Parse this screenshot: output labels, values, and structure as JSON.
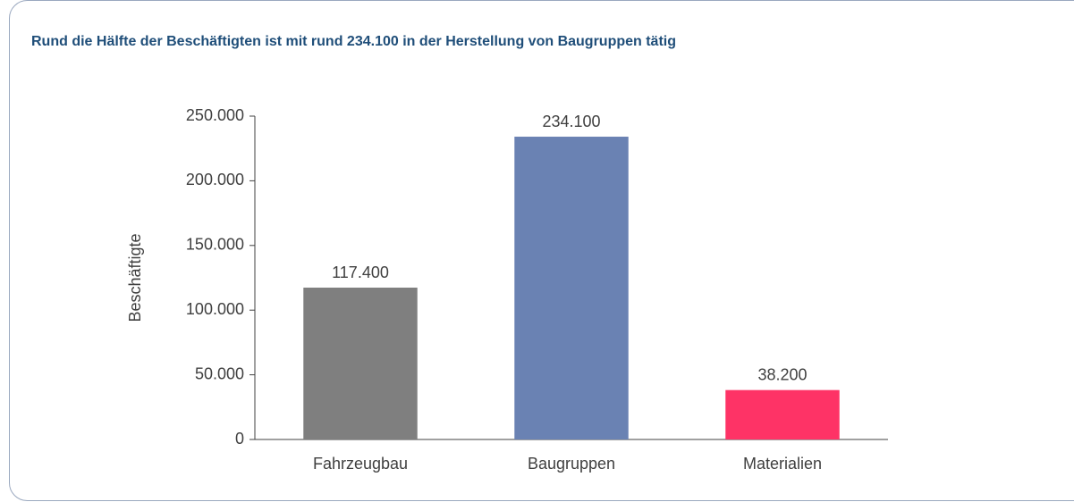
{
  "chart_data": {
    "type": "bar",
    "title": "Rund die Hälfte der Beschäftigten ist mit rund 234.100 in der Herstellung von Baugruppen tätig",
    "y_label": "Beschäftigte",
    "categories": [
      "Fahrzeugbau",
      "Baugruppen",
      "Materialien"
    ],
    "values": [
      117400,
      234100,
      38200
    ],
    "value_labels": [
      "117.400",
      "234.100",
      "38.200"
    ],
    "colors": [
      "#7f7f7f",
      "#6a82b3",
      "#fe3366"
    ],
    "ylim": [
      0,
      250000
    ],
    "yticks": [
      0,
      {
        "value": 50000,
        "label": "50.000"
      },
      {
        "value": 100000,
        "label": "100.000"
      },
      {
        "value": 150000,
        "label": "150.000"
      },
      {
        "value": 200000,
        "label": "200.000"
      },
      {
        "value": 250000,
        "label": "250.000"
      }
    ],
    "grid": false
  }
}
